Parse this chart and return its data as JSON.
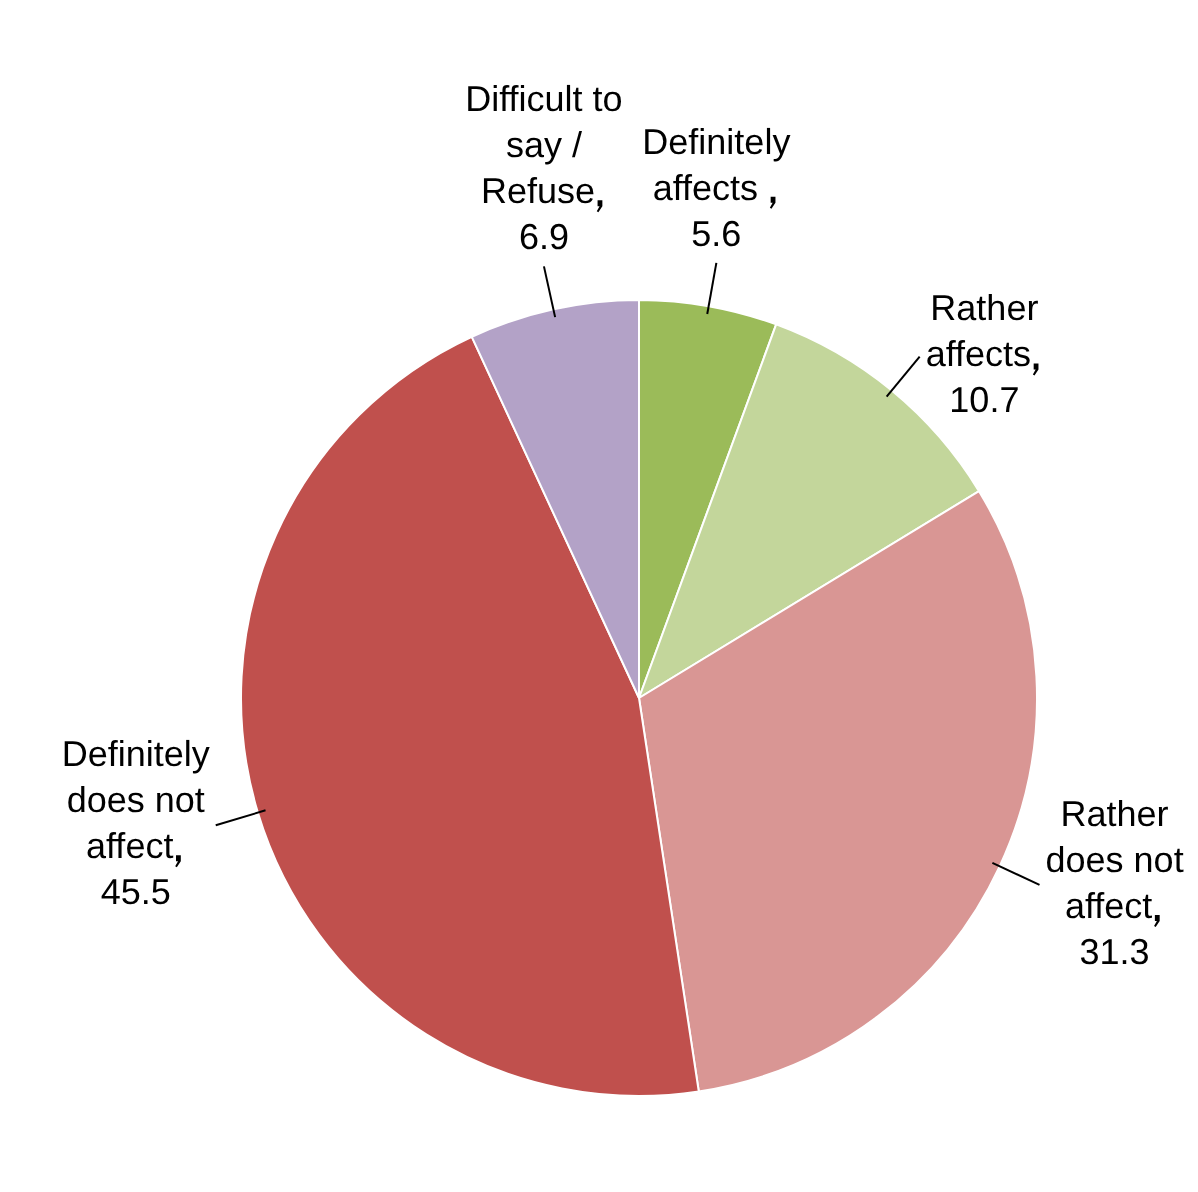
{
  "chart_data": {
    "type": "pie",
    "categories": [
      "Definitely affects ",
      "Rather affects",
      "Rather does not affect",
      "Definitely does not affect",
      "Difficult to say / Refuse"
    ],
    "values": [
      5.6,
      10.7,
      31.3,
      45.5,
      6.9
    ],
    "colors": [
      "#9bbb59",
      "#c3d69b",
      "#d99694",
      "#c0504d",
      "#b3a2c7"
    ],
    "data_labels": true,
    "legend": false
  }
}
